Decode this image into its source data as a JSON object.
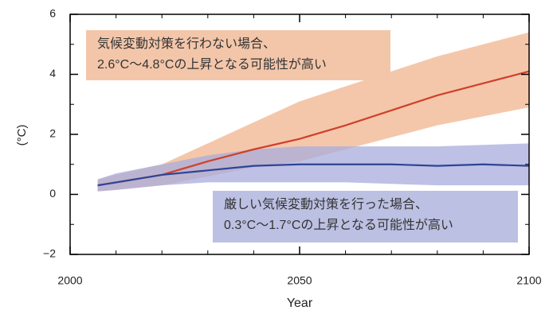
{
  "chart_data": {
    "type": "band-line",
    "x_label": "Year",
    "y_label": "(°C)",
    "x": [
      2006,
      2010,
      2020,
      2030,
      2040,
      2050,
      2060,
      2070,
      2080,
      2090,
      2100
    ],
    "series": [
      {
        "color": "#d0402a",
        "band_color": "#f0b48f",
        "values": [
          0.3,
          0.4,
          0.65,
          1.1,
          1.5,
          1.85,
          2.3,
          2.8,
          3.3,
          3.7,
          4.1
        ],
        "upper": [
          0.5,
          0.65,
          1.0,
          1.7,
          2.4,
          3.1,
          3.6,
          4.1,
          4.6,
          5.0,
          5.4
        ],
        "lower": [
          0.1,
          0.15,
          0.3,
          0.6,
          0.9,
          1.1,
          1.5,
          1.9,
          2.3,
          2.6,
          2.9
        ]
      },
      {
        "color": "#2e4496",
        "band_color": "#a8acdc",
        "values": [
          0.3,
          0.4,
          0.65,
          0.8,
          0.95,
          1.0,
          1.0,
          1.0,
          0.95,
          1.0,
          0.95
        ],
        "upper": [
          0.5,
          0.7,
          1.0,
          1.3,
          1.5,
          1.6,
          1.6,
          1.6,
          1.6,
          1.65,
          1.7
        ],
        "lower": [
          0.1,
          0.15,
          0.3,
          0.4,
          0.4,
          0.4,
          0.4,
          0.35,
          0.3,
          0.3,
          0.3
        ]
      }
    ],
    "annotations": [
      {
        "lines": [
          "気候変動対策を行わない場合、",
          "2.6°C～4.8°Cの上昇となる可能性が高い"
        ],
        "color": "#f3c6aa"
      },
      {
        "lines": [
          "厳しい気候変動対策を行った場合、",
          "0.3°C～1.7°Cの上昇となる可能性が高い"
        ],
        "color": "#bcc0e2"
      }
    ],
    "xlim": [
      2000,
      2100
    ],
    "ylim": [
      -2,
      6
    ],
    "xticks": [
      2000,
      2050,
      2100
    ],
    "xminorticks": [
      2010,
      2020,
      2030,
      2040,
      2060,
      2070,
      2080,
      2090
    ],
    "yticks": [
      {
        "value": -2,
        "label": "−2"
      },
      0,
      2,
      4,
      6
    ],
    "yminorticks": [
      -1,
      1,
      3,
      5
    ]
  }
}
